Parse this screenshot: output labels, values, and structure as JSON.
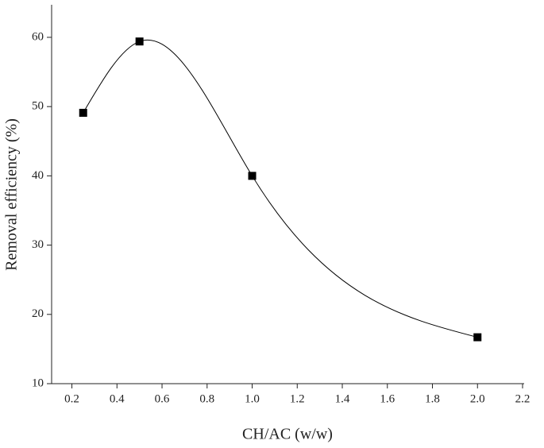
{
  "chart_data": {
    "type": "scatter",
    "x_label": "CH/AC (w/w)",
    "y_label": "Removal efficiency (%)",
    "x": [
      0.25,
      0.5,
      1.0,
      2.0
    ],
    "values": [
      49.1,
      59.4,
      40.0,
      16.7
    ],
    "color": "#000000",
    "xlim": [
      0.11,
      2.2
    ],
    "xticks": [
      0.2,
      0.4,
      0.6,
      0.8,
      {
        "value": 1.0,
        "label": "1.0"
      },
      1.2,
      1.4,
      1.6,
      1.8,
      {
        "value": 2.0,
        "label": "2.0"
      },
      2.2
    ],
    "ylim": [
      10,
      64.7
    ],
    "yticks": [
      10,
      20,
      30,
      40,
      50,
      60
    ],
    "smooth_line": true
  }
}
